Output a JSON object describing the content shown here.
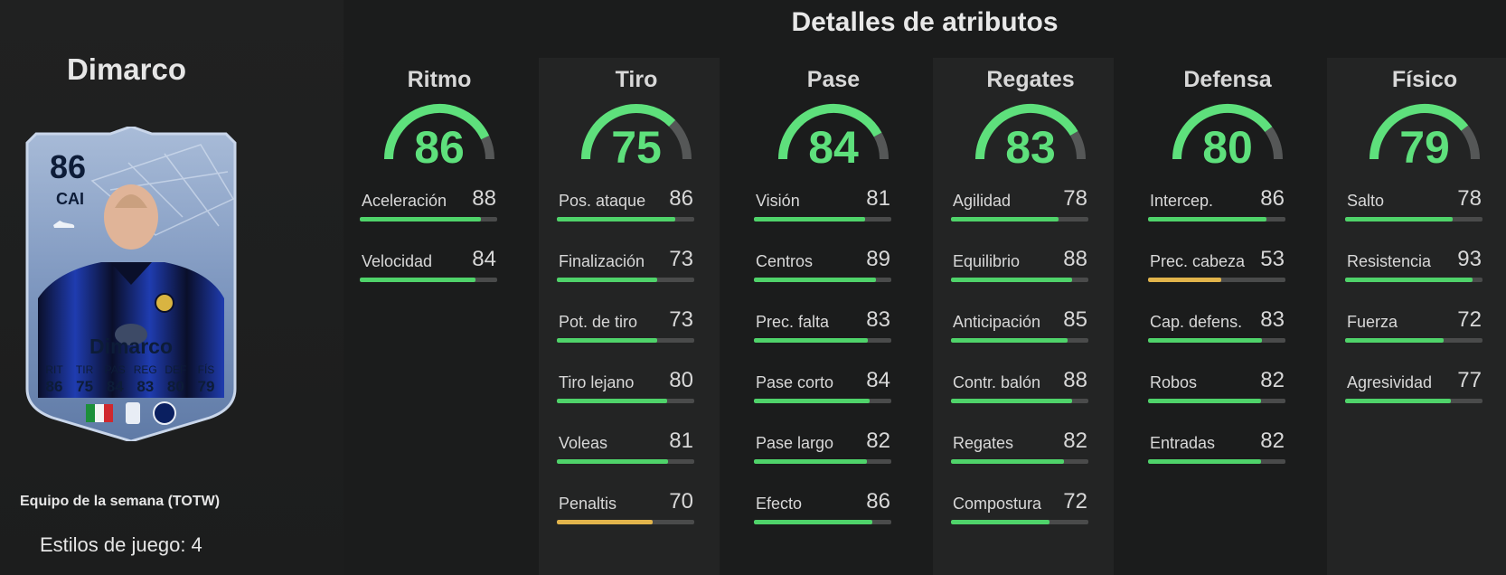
{
  "player": {
    "name": "Dimarco",
    "card": {
      "rating": "86",
      "position": "CAI",
      "name": "Dimarco",
      "stats": [
        {
          "label": "RIT",
          "value": "86"
        },
        {
          "label": "TIR",
          "value": "75"
        },
        {
          "label": "PAS",
          "value": "84"
        },
        {
          "label": "REG",
          "value": "83"
        },
        {
          "label": "DEF",
          "value": "80"
        },
        {
          "label": "FÍS",
          "value": "79"
        }
      ]
    },
    "card_type": "Equipo de la semana (TOTW)",
    "playstyles": "Estilos de juego: 4"
  },
  "section_title": "Detalles de atributos",
  "colors": {
    "accent_green": "#5ee07c",
    "bar_green": "#4fd36a",
    "bar_yellow": "#e2b44b",
    "bar_track": "#4a4b4b"
  },
  "categories": [
    {
      "name": "Ritmo",
      "value": "86",
      "attributes": [
        {
          "name": "Aceleración",
          "value": "88",
          "level": "high"
        },
        {
          "name": "Velocidad",
          "value": "84",
          "level": "high"
        }
      ]
    },
    {
      "name": "Tiro",
      "value": "75",
      "attributes": [
        {
          "name": "Pos. ataque",
          "value": "86",
          "level": "high"
        },
        {
          "name": "Finalización",
          "value": "73",
          "level": "high"
        },
        {
          "name": "Pot. de tiro",
          "value": "73",
          "level": "high"
        },
        {
          "name": "Tiro lejano",
          "value": "80",
          "level": "high"
        },
        {
          "name": "Voleas",
          "value": "81",
          "level": "high"
        },
        {
          "name": "Penaltis",
          "value": "70",
          "level": "mid"
        }
      ]
    },
    {
      "name": "Pase",
      "value": "84",
      "attributes": [
        {
          "name": "Visión",
          "value": "81",
          "level": "high"
        },
        {
          "name": "Centros",
          "value": "89",
          "level": "high"
        },
        {
          "name": "Prec. falta",
          "value": "83",
          "level": "high"
        },
        {
          "name": "Pase corto",
          "value": "84",
          "level": "high"
        },
        {
          "name": "Pase largo",
          "value": "82",
          "level": "high"
        },
        {
          "name": "Efecto",
          "value": "86",
          "level": "high"
        }
      ]
    },
    {
      "name": "Regates",
      "value": "83",
      "attributes": [
        {
          "name": "Agilidad",
          "value": "78",
          "level": "high"
        },
        {
          "name": "Equilibrio",
          "value": "88",
          "level": "high"
        },
        {
          "name": "Anticipación",
          "value": "85",
          "level": "high"
        },
        {
          "name": "Contr. balón",
          "value": "88",
          "level": "high"
        },
        {
          "name": "Regates",
          "value": "82",
          "level": "high"
        },
        {
          "name": "Compostura",
          "value": "72",
          "level": "high"
        }
      ]
    },
    {
      "name": "Defensa",
      "value": "80",
      "attributes": [
        {
          "name": "Intercep.",
          "value": "86",
          "level": "high"
        },
        {
          "name": "Prec. cabeza",
          "value": "53",
          "level": "mid"
        },
        {
          "name": "Cap. defens.",
          "value": "83",
          "level": "high"
        },
        {
          "name": "Robos",
          "value": "82",
          "level": "high"
        },
        {
          "name": "Entradas",
          "value": "82",
          "level": "high"
        }
      ]
    },
    {
      "name": "Físico",
      "value": "79",
      "attributes": [
        {
          "name": "Salto",
          "value": "78",
          "level": "high"
        },
        {
          "name": "Resistencia",
          "value": "93",
          "level": "high"
        },
        {
          "name": "Fuerza",
          "value": "72",
          "level": "high"
        },
        {
          "name": "Agresividad",
          "value": "77",
          "level": "high"
        }
      ]
    }
  ]
}
